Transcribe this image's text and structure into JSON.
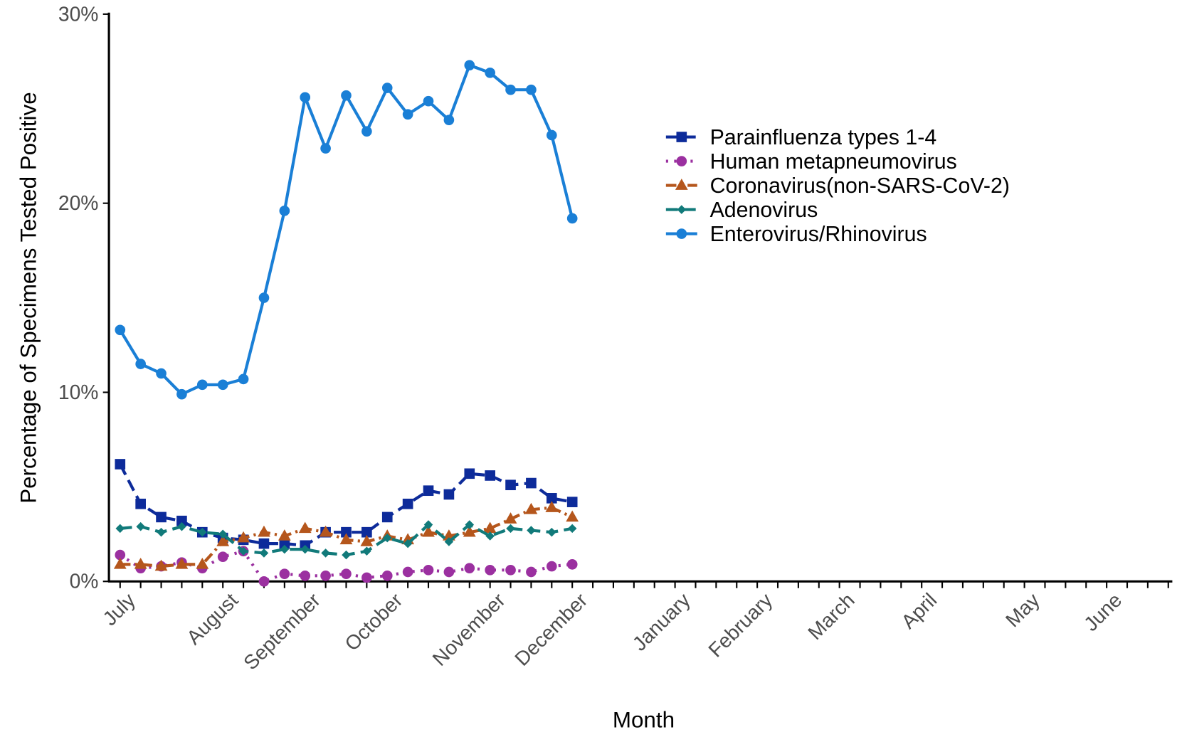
{
  "chart_data": {
    "type": "line",
    "x_label": "Month",
    "y_label": "Percentage of Specimens Tested Positive",
    "categories": [
      "July",
      null,
      null,
      null,
      null,
      "August",
      null,
      null,
      null,
      "September",
      null,
      null,
      null,
      "October",
      null,
      null,
      null,
      null,
      "November",
      null,
      null,
      null,
      "December",
      null,
      null,
      null,
      null,
      "January",
      null,
      null,
      null,
      "February",
      null,
      null,
      null,
      "March",
      null,
      null,
      null,
      "April",
      null,
      null,
      null,
      null,
      "May",
      null,
      null,
      null,
      "June",
      null,
      null,
      null
    ],
    "ylim": [
      0,
      30
    ],
    "yticks": [
      {
        "value": 0,
        "label": "0%"
      },
      {
        "value": 10,
        "label": "10%"
      },
      {
        "value": 20,
        "label": "20%"
      },
      {
        "value": 30,
        "label": "30%"
      }
    ],
    "legend": "right",
    "series": [
      {
        "name": "Parainfluenza types 1-4",
        "color": "#0d2b9a",
        "marker": "square",
        "linestyle": "dashed",
        "values": [
          6.2,
          4.1,
          3.4,
          3.2,
          2.6,
          2.3,
          2.2,
          2.0,
          2.0,
          1.9,
          2.6,
          2.6,
          2.6,
          3.4,
          4.1,
          4.8,
          4.6,
          5.7,
          5.6,
          5.1,
          5.2,
          4.4,
          4.2,
          null,
          null,
          null,
          null,
          null,
          null,
          null,
          null,
          null,
          null,
          null,
          null,
          null,
          null,
          null,
          null,
          null,
          null,
          null,
          null,
          null,
          null,
          null,
          null,
          null,
          null,
          null,
          null,
          null
        ]
      },
      {
        "name": "Human metapneumovirus",
        "color": "#9b30a0",
        "marker": "circle",
        "linestyle": "dotted",
        "values": [
          1.4,
          0.7,
          0.8,
          1.0,
          0.7,
          1.3,
          1.6,
          0.0,
          0.4,
          0.3,
          0.3,
          0.4,
          0.2,
          0.3,
          0.5,
          0.6,
          0.5,
          0.7,
          0.6,
          0.6,
          0.5,
          0.8,
          0.9,
          null,
          null,
          null,
          null,
          null,
          null,
          null,
          null,
          null,
          null,
          null,
          null,
          null,
          null,
          null,
          null,
          null,
          null,
          null,
          null,
          null,
          null,
          null,
          null,
          null,
          null,
          null,
          null,
          null
        ]
      },
      {
        "name": "Coronavirus(non-SARS-CoV-2)",
        "color": "#b5561c",
        "marker": "triangle",
        "linestyle": "dashdot",
        "values": [
          0.9,
          0.9,
          0.8,
          0.9,
          0.9,
          2.1,
          2.3,
          2.6,
          2.4,
          2.8,
          2.6,
          2.2,
          2.1,
          2.4,
          2.2,
          2.6,
          2.4,
          2.6,
          2.8,
          3.3,
          3.8,
          3.9,
          3.4,
          null,
          null,
          null,
          null,
          null,
          null,
          null,
          null,
          null,
          null,
          null,
          null,
          null,
          null,
          null,
          null,
          null,
          null,
          null,
          null,
          null,
          null,
          null,
          null,
          null,
          null,
          null,
          null,
          null
        ]
      },
      {
        "name": "Adenovirus",
        "color": "#117a7a",
        "marker": "diamond",
        "linestyle": "dashed",
        "values": [
          2.8,
          2.9,
          2.6,
          2.9,
          2.6,
          2.5,
          1.6,
          1.5,
          1.7,
          1.7,
          1.5,
          1.4,
          1.6,
          2.3,
          2.0,
          3.0,
          2.1,
          3.0,
          2.4,
          2.8,
          2.7,
          2.6,
          2.8,
          null,
          null,
          null,
          null,
          null,
          null,
          null,
          null,
          null,
          null,
          null,
          null,
          null,
          null,
          null,
          null,
          null,
          null,
          null,
          null,
          null,
          null,
          null,
          null,
          null,
          null,
          null,
          null,
          null
        ]
      },
      {
        "name": "Enterovirus/Rhinovirus",
        "color": "#1a7fd6",
        "marker": "circle",
        "linestyle": "solid",
        "values": [
          13.3,
          11.5,
          11.0,
          9.9,
          10.4,
          10.4,
          10.7,
          15.0,
          19.6,
          25.6,
          22.9,
          25.7,
          23.8,
          26.1,
          24.7,
          25.4,
          24.4,
          27.3,
          26.9,
          26.0,
          26.0,
          23.6,
          19.2,
          null,
          null,
          null,
          null,
          null,
          null,
          null,
          null,
          null,
          null,
          null,
          null,
          null,
          null,
          null,
          null,
          null,
          null,
          null,
          null,
          null,
          null,
          null,
          null,
          null,
          null,
          null,
          null,
          null
        ]
      }
    ]
  }
}
